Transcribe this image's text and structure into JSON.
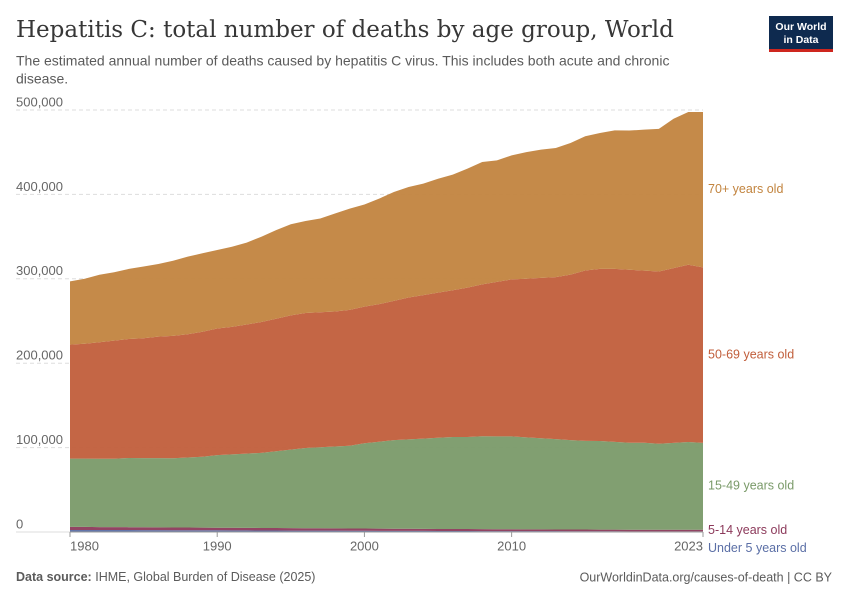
{
  "logo": [
    "Our World",
    "in Data"
  ],
  "chart_data": {
    "type": "stacked-area",
    "title": "Hepatitis C: total number of deaths by age group, World",
    "subtitle": [
      "The estimated annual number of deaths caused by hepatitis C virus. This includes both acute and chronic",
      "disease."
    ],
    "source_label": "Data source:",
    "source": "IHME, Global Burden of Disease (2025)",
    "footer": "OurWorldinData.org/causes-of-death | CC BY",
    "x": [
      1980,
      1981,
      1982,
      1983,
      1984,
      1985,
      1986,
      1987,
      1988,
      1989,
      1990,
      1991,
      1992,
      1993,
      1994,
      1995,
      1996,
      1997,
      1998,
      1999,
      2000,
      2001,
      2002,
      2003,
      2004,
      2005,
      2006,
      2007,
      2008,
      2009,
      2010,
      2011,
      2012,
      2013,
      2014,
      2015,
      2016,
      2017,
      2018,
      2019,
      2020,
      2021,
      2022,
      2023
    ],
    "xlim": [
      1980,
      2023
    ],
    "xticks": [
      1980,
      1990,
      2000,
      2010,
      2023
    ],
    "ylim": [
      0,
      500000
    ],
    "yticks": [
      0,
      {
        "value": 100000,
        "label": "100,000"
      },
      {
        "value": 200000,
        "label": "200,000"
      },
      {
        "value": 300000,
        "label": "300,000"
      },
      {
        "value": 400000,
        "label": "400,000"
      },
      {
        "value": 500000,
        "label": "500,000"
      }
    ],
    "grid": true,
    "series": [
      {
        "name": "Under 5 years old",
        "color": "#5b6fa6",
        "values": [
          2400,
          2400,
          2300,
          2300,
          2300,
          2200,
          2200,
          2100,
          2100,
          2000,
          2000,
          1900,
          1900,
          1800,
          1800,
          1700,
          1700,
          1600,
          1600,
          1500,
          1500,
          1400,
          1400,
          1300,
          1300,
          1200,
          1200,
          1200,
          1100,
          1100,
          1100,
          1000,
          1000,
          1000,
          900,
          900,
          900,
          900,
          800,
          800,
          800,
          800,
          800,
          800
        ]
      },
      {
        "name": "5-14 years old",
        "color": "#8c3a5b",
        "values": [
          3600,
          3600,
          3500,
          3500,
          3400,
          3400,
          3300,
          3300,
          3200,
          3200,
          3100,
          3100,
          3000,
          3000,
          2900,
          2900,
          2800,
          2800,
          2700,
          2700,
          2600,
          2600,
          2500,
          2500,
          2400,
          2400,
          2300,
          2300,
          2300,
          2200,
          2200,
          2100,
          2100,
          2000,
          2000,
          2000,
          1900,
          1900,
          1900,
          1900,
          1800,
          1800,
          1800,
          1800
        ]
      },
      {
        "name": "15-49 years old",
        "color": "#7a9a69",
        "values": [
          81000,
          81000,
          81000,
          81000,
          82000,
          82000,
          82000,
          82000,
          83000,
          84000,
          86000,
          87000,
          88000,
          89000,
          91000,
          93000,
          95000,
          96000,
          97000,
          98000,
          101000,
          103000,
          105000,
          106000,
          107000,
          108000,
          109000,
          109000,
          110000,
          110000,
          110000,
          109000,
          108000,
          107000,
          106000,
          105000,
          105000,
          104000,
          103000,
          103000,
          102000,
          103000,
          104000,
          103000
        ]
      },
      {
        "name": "50-69 years old",
        "color": "#c15e3b",
        "values": [
          135000,
          136000,
          138000,
          140000,
          141000,
          142000,
          144000,
          145000,
          146000,
          148000,
          150000,
          151000,
          153000,
          155000,
          157000,
          159000,
          160000,
          160000,
          160000,
          161000,
          162000,
          163000,
          165000,
          168000,
          170000,
          172000,
          174000,
          177000,
          180000,
          183000,
          186000,
          188000,
          190000,
          192000,
          196000,
          202000,
          204000,
          205000,
          205000,
          204000,
          204000,
          207000,
          210000,
          208000
        ]
      },
      {
        "name": "70+ years old",
        "color": "#c2843f",
        "values": [
          75000,
          77000,
          80000,
          81000,
          83000,
          85000,
          86000,
          89000,
          92000,
          93000,
          93000,
          95000,
          97000,
          101000,
          105000,
          108000,
          109000,
          111000,
          116000,
          120000,
          121000,
          125000,
          129000,
          131000,
          132000,
          135000,
          137000,
          141000,
          145000,
          144000,
          147000,
          150000,
          152000,
          153000,
          156000,
          159000,
          161000,
          164000,
          165000,
          167000,
          169000,
          177000,
          181000,
          184000
        ]
      }
    ]
  }
}
